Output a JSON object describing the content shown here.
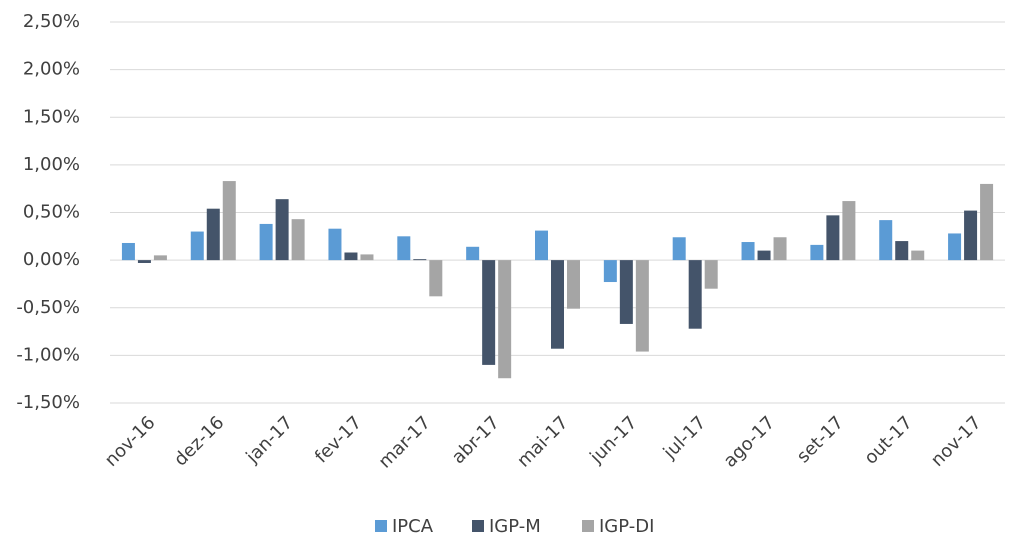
{
  "chart_data": {
    "type": "bar",
    "categories": [
      "nov-16",
      "dez-16",
      "jan-17",
      "fev-17",
      "mar-17",
      "abr-17",
      "mai-17",
      "jun-17",
      "jul-17",
      "ago-17",
      "set-17",
      "out-17",
      "nov-17"
    ],
    "series": [
      {
        "name": "IPCA",
        "color": "#5b9bd5",
        "values": [
          0.18,
          0.3,
          0.38,
          0.33,
          0.25,
          0.14,
          0.31,
          -0.23,
          0.24,
          0.19,
          0.16,
          0.42,
          0.28
        ]
      },
      {
        "name": "IGP-M",
        "color": "#44546a",
        "values": [
          -0.03,
          0.54,
          0.64,
          0.08,
          0.01,
          -1.1,
          -0.93,
          -0.67,
          -0.72,
          0.1,
          0.47,
          0.2,
          0.52
        ]
      },
      {
        "name": "IGP-DI",
        "color": "#a5a5a5",
        "values": [
          0.05,
          0.83,
          0.43,
          0.06,
          -0.38,
          -1.24,
          -0.51,
          -0.96,
          -0.3,
          0.24,
          0.62,
          0.1,
          0.8
        ]
      }
    ],
    "ylim": [
      -1.5,
      2.5
    ],
    "yticks": [
      {
        "value": -1.5,
        "label": "-1,50%"
      },
      {
        "value": -1.0,
        "label": "-1,00%"
      },
      {
        "value": -0.5,
        "label": "-0,50%"
      },
      {
        "value": 0,
        "label": "0,00%"
      },
      {
        "value": 0.5,
        "label": "0,50%"
      },
      {
        "value": 1.0,
        "label": "1,00%"
      },
      {
        "value": 1.5,
        "label": "1,50%"
      },
      {
        "value": 2.0,
        "label": "2,00%"
      },
      {
        "value": 2.5,
        "label": "2,50%"
      }
    ],
    "grid": true,
    "legend": "bottom"
  }
}
